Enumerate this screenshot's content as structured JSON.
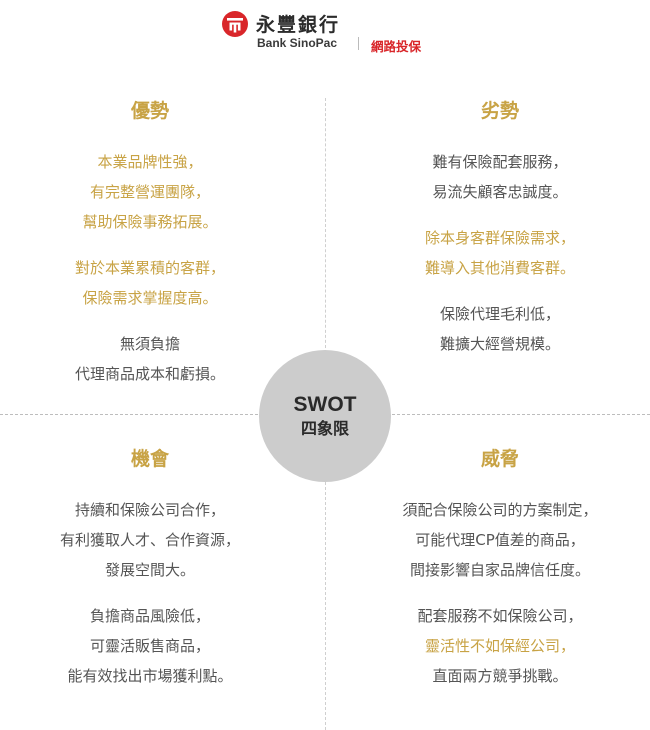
{
  "header": {
    "brand_cn": "永豐銀行",
    "brand_en": "Bank SinoPac",
    "sub_label": "網路投保",
    "colors": {
      "brand_red": "#d9262a"
    }
  },
  "center": {
    "title": "SWOT",
    "subtitle": "四象限"
  },
  "colors": {
    "accent_gold": "#c8a345",
    "body_text": "#555555",
    "circle": "#cccccc"
  },
  "quadrants": {
    "strengths": {
      "title": "優勢",
      "groups": [
        {
          "highlight": true,
          "lines": [
            "本業品牌性強，",
            "有完整營運團隊，",
            "幫助保險事務拓展。"
          ]
        },
        {
          "highlight": true,
          "lines": [
            "對於本業累積的客群，",
            "保險需求掌握度高。"
          ]
        },
        {
          "highlight": false,
          "lines": [
            "無須負擔",
            "代理商品成本和虧損。"
          ]
        }
      ]
    },
    "weaknesses": {
      "title": "劣勢",
      "groups": [
        {
          "highlight": false,
          "lines": [
            "難有保險配套服務，",
            "易流失顧客忠誠度。"
          ]
        },
        {
          "highlight": true,
          "lines": [
            "除本身客群保險需求，",
            "難導入其他消費客群。"
          ]
        },
        {
          "highlight": false,
          "lines": [
            "保險代理毛利低，",
            "難擴大經營規模。"
          ]
        }
      ]
    },
    "opportunities": {
      "title": "機會",
      "groups": [
        {
          "highlight": false,
          "lines": [
            "持續和保險公司合作，",
            "有利獲取人才、合作資源，",
            "發展空間大。"
          ]
        },
        {
          "highlight": false,
          "lines": [
            "負擔商品風險低，",
            "可靈活販售商品，",
            "能有效找出市場獲利點。"
          ]
        }
      ]
    },
    "threats": {
      "title": "威脅",
      "groups": [
        {
          "highlight": false,
          "lines": [
            "須配合保險公司的方案制定，",
            "可能代理CP值差的商品，",
            "間接影響自家品牌信任度。"
          ]
        },
        {
          "highlight": false,
          "lines": [
            "配套服務不如保險公司，"
          ]
        },
        {
          "highlight": true,
          "lines": [
            "靈活性不如保經公司，"
          ]
        },
        {
          "highlight": false,
          "lines": [
            "直面兩方競爭挑戰。"
          ]
        }
      ]
    }
  }
}
